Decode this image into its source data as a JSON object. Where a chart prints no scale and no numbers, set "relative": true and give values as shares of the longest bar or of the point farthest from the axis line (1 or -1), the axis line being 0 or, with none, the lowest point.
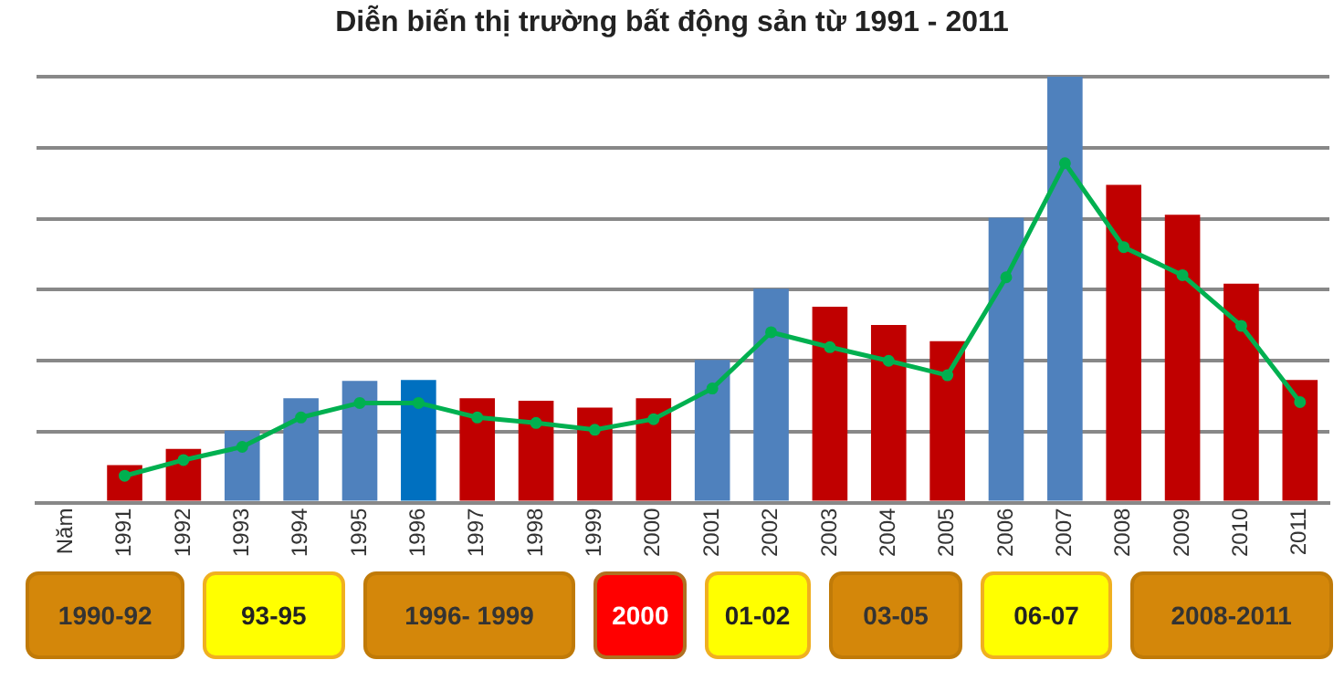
{
  "chart_data": {
    "type": "bar",
    "title": "Diễn biến thị trường bất động sản từ 1991 - 2011",
    "relative": true,
    "grid": "y",
    "legend": false,
    "categories": [
      "Năm",
      "1991",
      "1992",
      "1993",
      "1994",
      "1995",
      "1996",
      "1997",
      "1998",
      "1999",
      "2000",
      "2001",
      "2002",
      "2003",
      "2004",
      "2005",
      "2006",
      "2007",
      "2008",
      "2009",
      "2010",
      "2011"
    ],
    "series": [
      {
        "color": "#c00000",
        "colors": [
          null,
          "#c00000",
          "#c00000",
          "#4f81bd",
          "#4f81bd",
          "#4f81bd",
          "#0070c0",
          "#c00000",
          "#c00000",
          "#c00000",
          "#c00000",
          "#4f81bd",
          "#4f81bd",
          "#c00000",
          "#c00000",
          "#c00000",
          "#4f81bd",
          "#4f81bd",
          "#c00000",
          "#c00000",
          "#c00000",
          "#c00000"
        ],
        "values": [
          null,
          0.088,
          0.126,
          0.169,
          0.245,
          0.286,
          0.288,
          0.245,
          0.239,
          0.223,
          0.245,
          0.335,
          0.502,
          0.46,
          0.417,
          0.379,
          0.669,
          1,
          0.746,
          0.676,
          0.514,
          0.288
        ]
      },
      {
        "type": "line",
        "color": "#00b050",
        "marker": "circle",
        "values": [
          null,
          0.063,
          0.1,
          0.131,
          0.2,
          0.234,
          0.234,
          0.2,
          0.187,
          0.171,
          0.196,
          0.268,
          0.4,
          0.365,
          0.333,
          0.299,
          0.529,
          0.797,
          0.6,
          0.534,
          0.415,
          0.236
        ]
      }
    ],
    "annotations": [
      "1990-92",
      "93-95",
      "1996- 1999",
      "2000",
      "01-02",
      "03-05",
      "06-07",
      "2008-2011"
    ]
  }
}
